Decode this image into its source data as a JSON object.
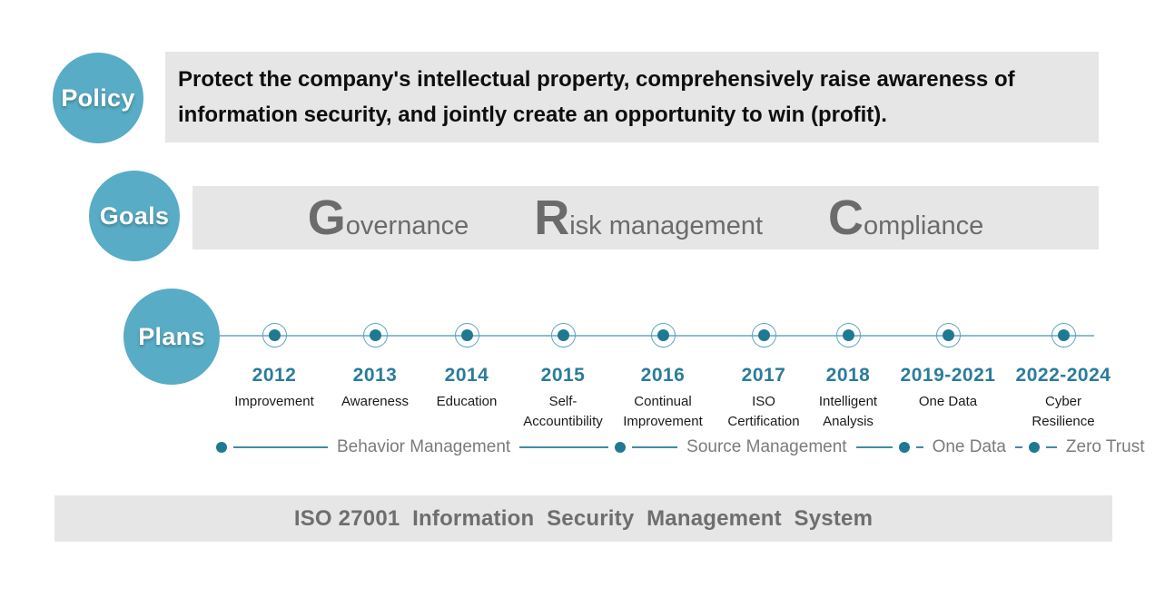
{
  "colors": {
    "accent_teal": "#58ACC5",
    "marker_dot_teal": "#1F7993",
    "year_teal": "#2A7C9C",
    "box_gray": "#E6E6E6",
    "goal_text_gray": "#6B6B6B",
    "footer_text_gray": "#6E6E6E"
  },
  "policy": {
    "badge_label": "Policy",
    "lines": [
      "Protect the company's intellectual property, comprehensively raise awareness of",
      "information security, and jointly create an opportunity to win (profit)."
    ]
  },
  "goals": {
    "badge_label": "Goals",
    "items": [
      {
        "initial": "G",
        "rest": "overnance"
      },
      {
        "initial": "R",
        "rest": "isk management"
      },
      {
        "initial": "C",
        "rest": "ompliance"
      }
    ]
  },
  "plans": {
    "badge_label": "Plans",
    "milestones": [
      {
        "year": "2012",
        "label": "Improvement"
      },
      {
        "year": "2013",
        "label": "Awareness"
      },
      {
        "year": "2014",
        "label": "Education"
      },
      {
        "year": "2015",
        "label": "Self-\nAccountibility"
      },
      {
        "year": "2016",
        "label": "Continual\nImprovement"
      },
      {
        "year": "2017",
        "label": "ISO\nCertification"
      },
      {
        "year": "2018",
        "label": "Intelligent\nAnalysis"
      },
      {
        "year": "2019-2021",
        "label": "One Data"
      },
      {
        "year": "2022-2024",
        "label": "Cyber\nResilience"
      }
    ],
    "phases": [
      "Behavior Management",
      "Source Management",
      "One Data",
      "Zero Trust"
    ]
  },
  "footer": {
    "label": "ISO 27001  Information  Security  Management  System"
  }
}
